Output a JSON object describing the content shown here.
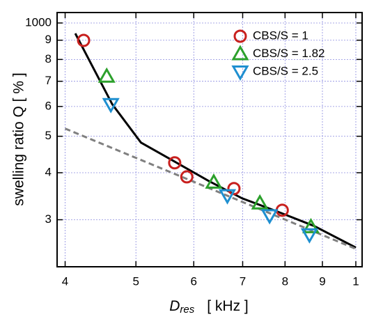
{
  "chart_data": {
    "type": "scatter",
    "xlabel": {
      "main": "D",
      "sub": "res",
      "unit": "[ kHz ]"
    },
    "ylabel": "swelling ratio Q  [ % ]",
    "xscale": "log",
    "yscale": "log",
    "grid": true,
    "legend": "upper right",
    "xlim": [
      3.9,
      10.2
    ],
    "ylim": [
      225,
      1066
    ],
    "xticks": [
      4,
      5,
      6,
      7,
      8,
      9,
      {
        "value": 10,
        "label": "1"
      }
    ],
    "yticks": [
      {
        "value": 300,
        "label": "3"
      },
      {
        "value": 400,
        "label": "4"
      },
      {
        "value": 500,
        "label": "5"
      },
      {
        "value": 600,
        "label": "6"
      },
      {
        "value": 700,
        "label": "7"
      },
      {
        "value": 800,
        "label": "8"
      },
      {
        "value": 900,
        "label": "9"
      },
      1000
    ],
    "series": [
      {
        "name": "CBS/S = 1",
        "marker": "circle",
        "color": "#c8201e",
        "x": [
          4.24,
          5.65,
          5.87,
          6.81,
          7.93
        ],
        "values": [
          899,
          425,
          390,
          363,
          318
        ]
      },
      {
        "name": "CBS/S = 1.82",
        "marker": "triangle-up",
        "color": "#2ca02c",
        "x": [
          4.56,
          6.39,
          7.39,
          8.68
        ],
        "values": [
          721,
          377,
          332,
          287
        ]
      },
      {
        "name": "CBS/S = 2.5",
        "marker": "triangle-down",
        "color": "#1e8fd0",
        "x": [
          4.62,
          6.67,
          7.62,
          8.64
        ],
        "values": [
          608,
          348,
          308,
          274
        ]
      }
    ],
    "lines": [
      {
        "style": "solid",
        "color": "#000000",
        "x": [
          4.13,
          4.64,
          5.08,
          5.65,
          6.28,
          6.99,
          7.82,
          8.76,
          10.0
        ],
        "values": [
          938,
          608,
          481,
          428,
          381,
          342,
          315,
          289,
          253
        ]
      },
      {
        "style": "dashed",
        "color": "#808080",
        "x": [
          4,
          10
        ],
        "values": [
          524,
          251
        ]
      }
    ]
  }
}
